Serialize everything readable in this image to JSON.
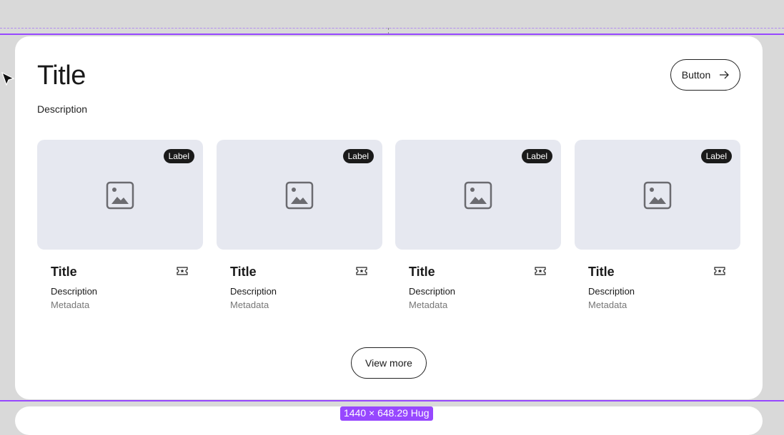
{
  "header": {
    "title": "Title",
    "description": "Description",
    "button_label": "Button"
  },
  "cards": [
    {
      "label": "Label",
      "title": "Title",
      "description": "Description",
      "metadata": "Metadata"
    },
    {
      "label": "Label",
      "title": "Title",
      "description": "Description",
      "metadata": "Metadata"
    },
    {
      "label": "Label",
      "title": "Title",
      "description": "Description",
      "metadata": "Metadata"
    },
    {
      "label": "Label",
      "title": "Title",
      "description": "Description",
      "metadata": "Metadata"
    }
  ],
  "view_more_label": "View more",
  "selection_badge": "1440 × 648.29 Hug",
  "colors": {
    "selection": "#9747ff",
    "image_placeholder": "#e6e8f0"
  }
}
